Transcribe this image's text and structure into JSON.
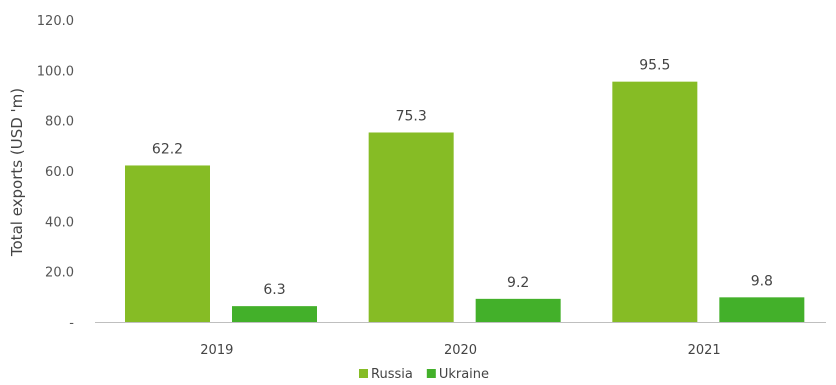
{
  "chart_data": {
    "type": "bar",
    "title": "",
    "xlabel": "",
    "ylabel": "Total exports (USD 'm)",
    "categories": [
      "2019",
      "2020",
      "2021"
    ],
    "series": [
      {
        "name": "Russia",
        "values": [
          62.2,
          75.3,
          95.5
        ],
        "color": "#86bc25"
      },
      {
        "name": "Ukraine",
        "values": [
          6.3,
          9.2,
          9.8
        ],
        "color": "#43b02a"
      }
    ],
    "data_labels": [
      [
        "62.2",
        "75.3",
        "95.5"
      ],
      [
        "6.3",
        "9.2",
        "9.8"
      ]
    ],
    "ylim": [
      0,
      120
    ],
    "yticks": [
      0,
      20,
      40,
      60,
      80,
      100,
      120
    ],
    "ytick_labels": [
      "-",
      "20.0",
      "40.0",
      "60.0",
      "80.0",
      "100.0",
      "120.0"
    ],
    "grid": false,
    "legend_position": "bottom-center"
  }
}
